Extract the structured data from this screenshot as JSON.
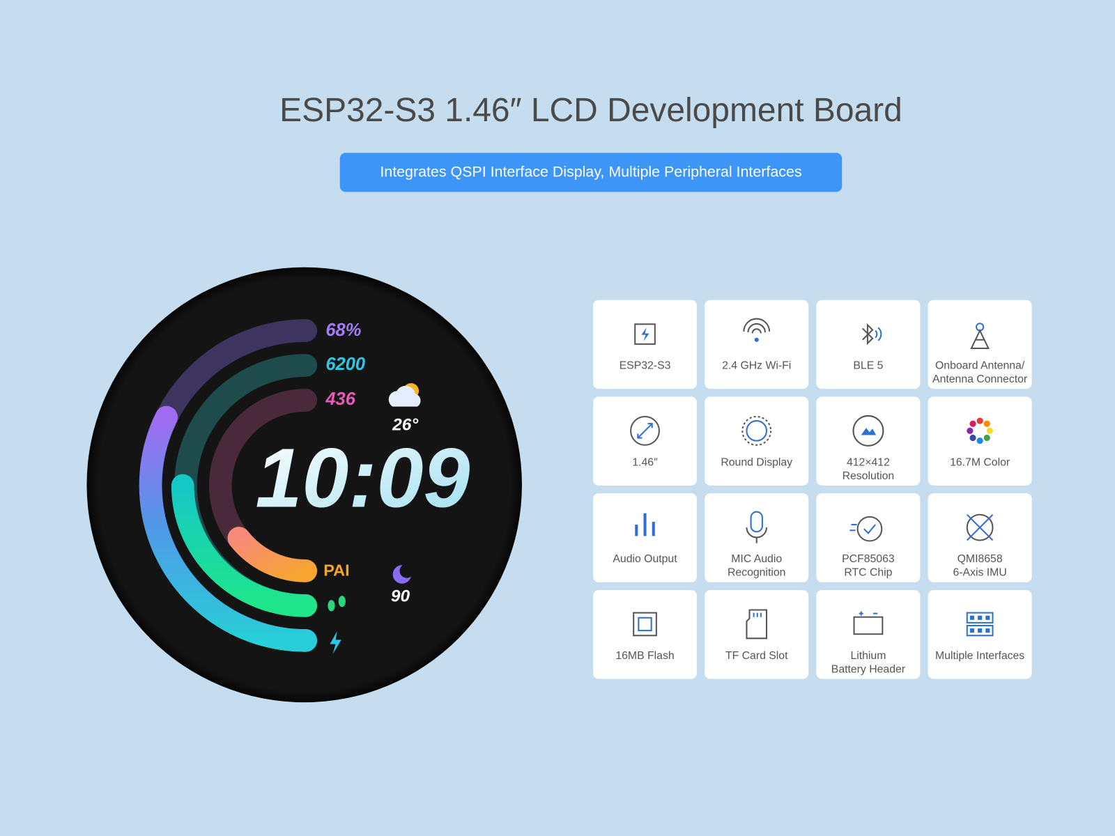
{
  "header": {
    "title": "ESP32-S3 1.46″ LCD Development Board",
    "subtitle": "Integrates QSPI Interface Display, Multiple Peripheral Interfaces"
  },
  "watch": {
    "battery": "68%",
    "steps": "6200",
    "calories": "436",
    "temperature": "26°",
    "time": "10:09",
    "pai": "PAI",
    "sleep": "90"
  },
  "features": [
    {
      "lines": [
        "ESP32-S3"
      ]
    },
    {
      "lines": [
        "2.4 GHz Wi-Fi"
      ]
    },
    {
      "lines": [
        "BLE 5"
      ]
    },
    {
      "lines": [
        "Onboard Antenna/",
        "Antenna Connector"
      ]
    },
    {
      "lines": [
        "1.46″"
      ]
    },
    {
      "lines": [
        "Round Display"
      ]
    },
    {
      "lines": [
        "412×412",
        "Resolution"
      ]
    },
    {
      "lines": [
        "16.7M Color"
      ]
    },
    {
      "lines": [
        "Audio Output"
      ]
    },
    {
      "lines": [
        "MIC Audio",
        "Recognition"
      ]
    },
    {
      "lines": [
        "PCF85063",
        "RTC Chip"
      ]
    },
    {
      "lines": [
        "QMI8658",
        "6-Axis IMU"
      ]
    },
    {
      "lines": [
        "16MB Flash"
      ]
    },
    {
      "lines": [
        "TF Card Slot"
      ]
    },
    {
      "lines": [
        "Lithium",
        "Battery Header"
      ]
    },
    {
      "lines": [
        "Multiple Interfaces"
      ]
    }
  ]
}
